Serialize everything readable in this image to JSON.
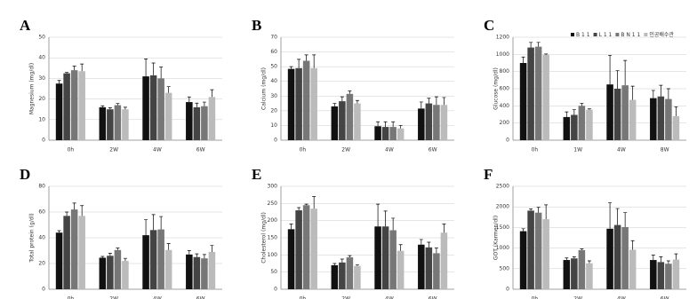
{
  "chart_data": [
    {
      "type": "bar",
      "title": "A",
      "y_label": "Magnesium (mg/dl)",
      "categories": [
        "0h",
        "2W",
        "4W",
        "6W"
      ],
      "series": [
        {
          "color": "#111111",
          "values": [
            27.5,
            16,
            31,
            18.5
          ],
          "errors": [
            1.5,
            0.7,
            8.5,
            2.5
          ]
        },
        {
          "color": "#444444",
          "values": [
            32.5,
            15,
            31.5,
            16
          ],
          "errors": [
            0.5,
            0.8,
            6,
            2
          ]
        },
        {
          "color": "#777777",
          "values": [
            34,
            17,
            30,
            16.5
          ],
          "errors": [
            2,
            0.8,
            5.5,
            2
          ]
        },
        {
          "color": "#bbbbbb",
          "values": [
            33.5,
            15,
            23,
            21
          ],
          "errors": [
            3.5,
            1,
            3,
            3.5
          ]
        }
      ],
      "ylim": [
        0,
        50
      ],
      "yticks": [
        0,
        10,
        20,
        30,
        40,
        50
      ],
      "grid": true
    },
    {
      "type": "bar",
      "title": "B",
      "y_label": "Calcium (mg/dl)",
      "categories": [
        "0h",
        "2W",
        "4W",
        "6W"
      ],
      "series": [
        {
          "color": "#111111",
          "values": [
            48.5,
            23,
            9.5,
            21.5
          ],
          "errors": [
            1.5,
            2,
            3,
            4.5
          ]
        },
        {
          "color": "#444444",
          "values": [
            49,
            26.5,
            9,
            25
          ],
          "errors": [
            6,
            3,
            3.5,
            3.5
          ]
        },
        {
          "color": "#777777",
          "values": [
            54,
            31.5,
            9,
            24
          ],
          "errors": [
            4,
            2,
            3.5,
            5.5
          ]
        },
        {
          "color": "#bbbbbb",
          "values": [
            49,
            25,
            8,
            24
          ],
          "errors": [
            9,
            2,
            2,
            5
          ]
        }
      ],
      "ylim": [
        0,
        70
      ],
      "yticks": [
        0,
        10,
        20,
        30,
        40,
        50,
        60,
        70
      ],
      "grid": true
    },
    {
      "type": "bar",
      "title": "C",
      "y_label": "Glucose (mg/dl)",
      "categories": [
        "0h",
        "1W",
        "4W",
        "8W"
      ],
      "series": [
        {
          "name": "B 1 1",
          "color": "#111111",
          "values": [
            900,
            270,
            650,
            490
          ],
          "errors": [
            70,
            60,
            340,
            90
          ]
        },
        {
          "name": "L 1 1",
          "color": "#444444",
          "values": [
            1080,
            295,
            600,
            510
          ],
          "errors": [
            60,
            60,
            210,
            130
          ]
        },
        {
          "name": "B N 1 1",
          "color": "#777777",
          "values": [
            1090,
            400,
            640,
            480
          ],
          "errors": [
            50,
            30,
            290,
            120
          ]
        },
        {
          "name": "인공배수관",
          "color": "#bbbbbb",
          "values": [
            995,
            355,
            470,
            280
          ],
          "errors": [
            10,
            10,
            160,
            110
          ]
        }
      ],
      "legend": "top-right",
      "ylim": [
        0,
        1200
      ],
      "yticks": [
        0,
        200,
        400,
        600,
        800,
        1000,
        1200
      ],
      "grid": true
    },
    {
      "type": "bar",
      "title": "D",
      "y_label": "Total protein (g/dl)",
      "categories": [
        "0h",
        "2W",
        "4W",
        "6W"
      ],
      "series": [
        {
          "color": "#111111",
          "values": [
            44,
            24.5,
            42,
            27
          ],
          "errors": [
            1.5,
            1,
            12,
            3
          ]
        },
        {
          "color": "#444444",
          "values": [
            57,
            26,
            46,
            25
          ],
          "errors": [
            3,
            2,
            12,
            2.5
          ]
        },
        {
          "color": "#777777",
          "values": [
            62,
            30.5,
            46.5,
            24
          ],
          "errors": [
            5,
            1.5,
            10,
            3
          ]
        },
        {
          "color": "#bbbbbb",
          "values": [
            57,
            22,
            30.5,
            29
          ],
          "errors": [
            8,
            2,
            5,
            5
          ]
        }
      ],
      "ylim": [
        0,
        80
      ],
      "yticks": [
        0,
        20,
        40,
        60,
        80
      ],
      "grid": true
    },
    {
      "type": "bar",
      "title": "E",
      "y_label": "Cholesterol (mg/dl)",
      "categories": [
        "0h",
        "2W",
        "4W",
        "6W"
      ],
      "series": [
        {
          "color": "#111111",
          "values": [
            175,
            70,
            183,
            130
          ],
          "errors": [
            15,
            5,
            65,
            15
          ]
        },
        {
          "color": "#444444",
          "values": [
            230,
            78,
            183,
            122
          ],
          "errors": [
            8,
            10,
            45,
            15
          ]
        },
        {
          "color": "#777777",
          "values": [
            245,
            93,
            172,
            105
          ],
          "errors": [
            3,
            5,
            35,
            15
          ]
        },
        {
          "color": "#bbbbbb",
          "values": [
            235,
            68,
            112,
            165
          ],
          "errors": [
            35,
            3,
            18,
            25
          ]
        }
      ],
      "ylim": [
        0,
        300
      ],
      "yticks": [
        0,
        50,
        100,
        150,
        200,
        250,
        300
      ],
      "grid": true
    },
    {
      "type": "bar",
      "title": "F",
      "y_label": "GOT (Karmen/dl)",
      "categories": [
        "0h",
        "2W",
        "4W",
        "6W"
      ],
      "series": [
        {
          "color": "#111111",
          "values": [
            1410,
            710,
            1470,
            710
          ],
          "errors": [
            60,
            50,
            630,
            120
          ]
        },
        {
          "color": "#444444",
          "values": [
            1910,
            750,
            1560,
            660
          ],
          "errors": [
            40,
            40,
            400,
            130
          ]
        },
        {
          "color": "#777777",
          "values": [
            1860,
            950,
            1510,
            620
          ],
          "errors": [
            130,
            30,
            350,
            70
          ]
        },
        {
          "color": "#bbbbbb",
          "values": [
            1700,
            630,
            960,
            720
          ],
          "errors": [
            350,
            60,
            220,
            140
          ]
        }
      ],
      "ylim": [
        0,
        2500
      ],
      "yticks": [
        0,
        500,
        1000,
        1500,
        2000,
        2500
      ],
      "grid": true
    }
  ]
}
